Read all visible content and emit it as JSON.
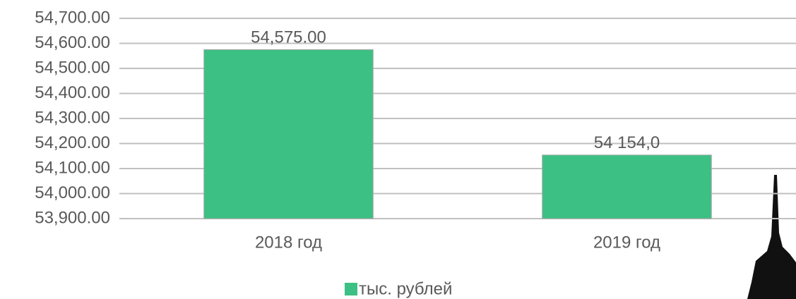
{
  "chart_data": {
    "type": "bar",
    "categories": [
      "2018 год",
      "2019 год"
    ],
    "series": [
      {
        "name": "тыс. рублей",
        "color": "#3cc084",
        "values": [
          54575,
          54154
        ],
        "value_labels": [
          "54,575.00",
          "54 154,0"
        ]
      }
    ],
    "ylim": [
      53900,
      54700
    ],
    "yticks": [
      {
        "value": 53900,
        "label": "53,900.00"
      },
      {
        "value": 54000,
        "label": "54,000.00"
      },
      {
        "value": 54100,
        "label": "54,100.00"
      },
      {
        "value": 54200,
        "label": "54,200.00"
      },
      {
        "value": 54300,
        "label": "54,300.00"
      },
      {
        "value": 54400,
        "label": "54,400.00"
      },
      {
        "value": 54500,
        "label": "54,500.00"
      },
      {
        "value": 54600,
        "label": "54,600.00"
      },
      {
        "value": 54700,
        "label": "54,700.00"
      }
    ],
    "grid": true,
    "legend": "bottom"
  }
}
